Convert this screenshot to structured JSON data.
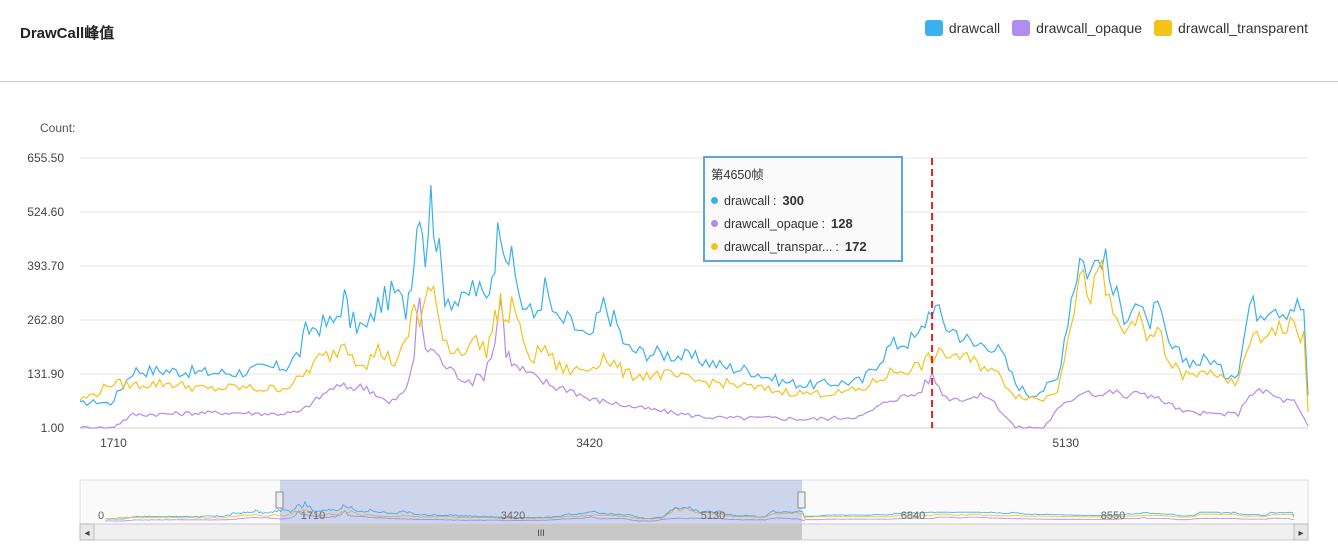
{
  "header": {
    "title": "DrawCall峰值"
  },
  "legend": [
    {
      "label": "drawcall",
      "color": "#3ab0f0"
    },
    {
      "label": "drawcall_opaque",
      "color": "#b08df0"
    },
    {
      "label": "drawcall_transparent",
      "color": "#f5c21a"
    }
  ],
  "tooltip": {
    "title": "第4650帧",
    "rows": [
      {
        "name": "drawcall",
        "value": "300",
        "color": "#3ab0f0"
      },
      {
        "name": "drawcall_opaque",
        "value": "128",
        "color": "#b08df0"
      },
      {
        "name": "drawcall_transpar...",
        "value": "172",
        "color": "#f5c21a"
      }
    ]
  },
  "chart_data": {
    "type": "line",
    "ylabel": "Count:",
    "yticks": [
      "655.50",
      "524.60",
      "393.70",
      "262.80",
      "131.90",
      "1.00"
    ],
    "ylim": [
      1,
      655.5
    ],
    "xlim": [
      1590,
      6000
    ],
    "xticks": [
      "1710",
      "3420",
      "5130"
    ],
    "marker_x": 4650,
    "grid": true,
    "legend_position": "top-right",
    "series": [
      {
        "name": "drawcall",
        "color": "#3ab0f0",
        "points": [
          [
            1590,
            60
          ],
          [
            1650,
            65
          ],
          [
            1700,
            60
          ],
          [
            1780,
            140
          ],
          [
            1900,
            140
          ],
          [
            2050,
            135
          ],
          [
            2150,
            135
          ],
          [
            2250,
            145
          ],
          [
            2330,
            150
          ],
          [
            2380,
            185
          ],
          [
            2400,
            235
          ],
          [
            2450,
            250
          ],
          [
            2500,
            255
          ],
          [
            2540,
            320
          ],
          [
            2560,
            260
          ],
          [
            2620,
            240
          ],
          [
            2660,
            300
          ],
          [
            2720,
            330
          ],
          [
            2760,
            290
          ],
          [
            2790,
            420
          ],
          [
            2810,
            560
          ],
          [
            2830,
            420
          ],
          [
            2850,
            560
          ],
          [
            2880,
            420
          ],
          [
            2900,
            330
          ],
          [
            2960,
            300
          ],
          [
            3000,
            345
          ],
          [
            3050,
            310
          ],
          [
            3080,
            420
          ],
          [
            3100,
            510
          ],
          [
            3120,
            440
          ],
          [
            3140,
            400
          ],
          [
            3180,
            300
          ],
          [
            3220,
            270
          ],
          [
            3260,
            340
          ],
          [
            3300,
            260
          ],
          [
            3340,
            260
          ],
          [
            3380,
            240
          ],
          [
            3420,
            210
          ],
          [
            3470,
            300
          ],
          [
            3520,
            250
          ],
          [
            3550,
            195
          ],
          [
            3600,
            185
          ],
          [
            3700,
            180
          ],
          [
            3800,
            170
          ],
          [
            3900,
            150
          ],
          [
            4000,
            140
          ],
          [
            4100,
            115
          ],
          [
            4200,
            105
          ],
          [
            4300,
            110
          ],
          [
            4400,
            115
          ],
          [
            4500,
            200
          ],
          [
            4600,
            220
          ],
          [
            4650,
            300
          ],
          [
            4700,
            250
          ],
          [
            4750,
            230
          ],
          [
            4800,
            200
          ],
          [
            4850,
            210
          ],
          [
            4900,
            180
          ],
          [
            4950,
            110
          ],
          [
            5000,
            80
          ],
          [
            5050,
            95
          ],
          [
            5100,
            120
          ],
          [
            5150,
            320
          ],
          [
            5180,
            415
          ],
          [
            5220,
            380
          ],
          [
            5260,
            430
          ],
          [
            5300,
            330
          ],
          [
            5340,
            280
          ],
          [
            5380,
            310
          ],
          [
            5420,
            250
          ],
          [
            5460,
            290
          ],
          [
            5500,
            200
          ],
          [
            5550,
            170
          ],
          [
            5600,
            160
          ],
          [
            5650,
            170
          ],
          [
            5700,
            130
          ],
          [
            5750,
            140
          ],
          [
            5790,
            300
          ],
          [
            5830,
            285
          ],
          [
            5870,
            310
          ],
          [
            5910,
            290
          ],
          [
            5950,
            300
          ],
          [
            5985,
            290
          ],
          [
            6000,
            80
          ]
        ]
      },
      {
        "name": "drawcall_opaque",
        "color": "#b08df0",
        "points": [
          [
            1590,
            1
          ],
          [
            1700,
            1
          ],
          [
            1780,
            33
          ],
          [
            1900,
            35
          ],
          [
            2050,
            38
          ],
          [
            2150,
            38
          ],
          [
            2300,
            35
          ],
          [
            2380,
            40
          ],
          [
            2450,
            75
          ],
          [
            2500,
            100
          ],
          [
            2550,
            100
          ],
          [
            2620,
            100
          ],
          [
            2700,
            60
          ],
          [
            2760,
            90
          ],
          [
            2790,
            180
          ],
          [
            2810,
            320
          ],
          [
            2830,
            180
          ],
          [
            2850,
            200
          ],
          [
            2880,
            170
          ],
          [
            2920,
            140
          ],
          [
            2960,
            125
          ],
          [
            3000,
            115
          ],
          [
            3040,
            130
          ],
          [
            3080,
            210
          ],
          [
            3100,
            320
          ],
          [
            3120,
            190
          ],
          [
            3150,
            150
          ],
          [
            3180,
            140
          ],
          [
            3230,
            120
          ],
          [
            3300,
            100
          ],
          [
            3350,
            95
          ],
          [
            3420,
            70
          ],
          [
            3480,
            65
          ],
          [
            3550,
            55
          ],
          [
            3700,
            40
          ],
          [
            3800,
            30
          ],
          [
            3900,
            25
          ],
          [
            4000,
            25
          ],
          [
            4100,
            25
          ],
          [
            4200,
            22
          ],
          [
            4300,
            25
          ],
          [
            4400,
            30
          ],
          [
            4500,
            70
          ],
          [
            4600,
            85
          ],
          [
            4650,
            128
          ],
          [
            4700,
            75
          ],
          [
            4750,
            72
          ],
          [
            4800,
            75
          ],
          [
            4850,
            80
          ],
          [
            4950,
            1
          ],
          [
            5050,
            1
          ],
          [
            5100,
            45
          ],
          [
            5150,
            70
          ],
          [
            5200,
            95
          ],
          [
            5250,
            80
          ],
          [
            5300,
            90
          ],
          [
            5350,
            75
          ],
          [
            5400,
            90
          ],
          [
            5450,
            75
          ],
          [
            5500,
            60
          ],
          [
            5550,
            40
          ],
          [
            5650,
            35
          ],
          [
            5750,
            35
          ],
          [
            5790,
            85
          ],
          [
            5850,
            90
          ],
          [
            5900,
            70
          ],
          [
            5950,
            65
          ],
          [
            6000,
            5
          ]
        ]
      },
      {
        "name": "drawcall_transparent",
        "color": "#f5c21a",
        "points": [
          [
            1590,
            70
          ],
          [
            1650,
            85
          ],
          [
            1700,
            110
          ],
          [
            1780,
            105
          ],
          [
            1900,
            110
          ],
          [
            2050,
            95
          ],
          [
            2150,
            100
          ],
          [
            2250,
            95
          ],
          [
            2330,
            100
          ],
          [
            2380,
            120
          ],
          [
            2450,
            170
          ],
          [
            2500,
            180
          ],
          [
            2540,
            210
          ],
          [
            2580,
            170
          ],
          [
            2620,
            160
          ],
          [
            2660,
            190
          ],
          [
            2720,
            160
          ],
          [
            2760,
            200
          ],
          [
            2790,
            300
          ],
          [
            2810,
            260
          ],
          [
            2830,
            310
          ],
          [
            2850,
            340
          ],
          [
            2880,
            260
          ],
          [
            2920,
            190
          ],
          [
            2960,
            190
          ],
          [
            3000,
            215
          ],
          [
            3050,
            190
          ],
          [
            3080,
            260
          ],
          [
            3100,
            310
          ],
          [
            3120,
            250
          ],
          [
            3150,
            310
          ],
          [
            3180,
            200
          ],
          [
            3220,
            170
          ],
          [
            3260,
            200
          ],
          [
            3300,
            150
          ],
          [
            3350,
            140
          ],
          [
            3420,
            145
          ],
          [
            3470,
            175
          ],
          [
            3520,
            150
          ],
          [
            3550,
            130
          ],
          [
            3600,
            130
          ],
          [
            3700,
            130
          ],
          [
            3800,
            115
          ],
          [
            3900,
            110
          ],
          [
            4000,
            100
          ],
          [
            4100,
            90
          ],
          [
            4200,
            85
          ],
          [
            4300,
            85
          ],
          [
            4400,
            95
          ],
          [
            4500,
            135
          ],
          [
            4600,
            150
          ],
          [
            4650,
            172
          ],
          [
            4700,
            180
          ],
          [
            4750,
            175
          ],
          [
            4800,
            160
          ],
          [
            4850,
            150
          ],
          [
            4900,
            120
          ],
          [
            4950,
            80
          ],
          [
            5000,
            75
          ],
          [
            5050,
            70
          ],
          [
            5100,
            95
          ],
          [
            5150,
            270
          ],
          [
            5180,
            360
          ],
          [
            5220,
            330
          ],
          [
            5260,
            370
          ],
          [
            5300,
            270
          ],
          [
            5340,
            230
          ],
          [
            5380,
            280
          ],
          [
            5420,
            210
          ],
          [
            5460,
            240
          ],
          [
            5500,
            160
          ],
          [
            5550,
            130
          ],
          [
            5600,
            125
          ],
          [
            5650,
            145
          ],
          [
            5700,
            110
          ],
          [
            5750,
            110
          ],
          [
            5790,
            220
          ],
          [
            5830,
            210
          ],
          [
            5870,
            250
          ],
          [
            5910,
            240
          ],
          [
            5950,
            250
          ],
          [
            5985,
            220
          ],
          [
            6000,
            40
          ]
        ]
      }
    ]
  },
  "zoom_slider": {
    "labels": [
      "0",
      "1710",
      "3420",
      "5130",
      "6840",
      "8550"
    ],
    "handle_label": "III",
    "left_arrow": "◂",
    "right_arrow": "▸"
  }
}
